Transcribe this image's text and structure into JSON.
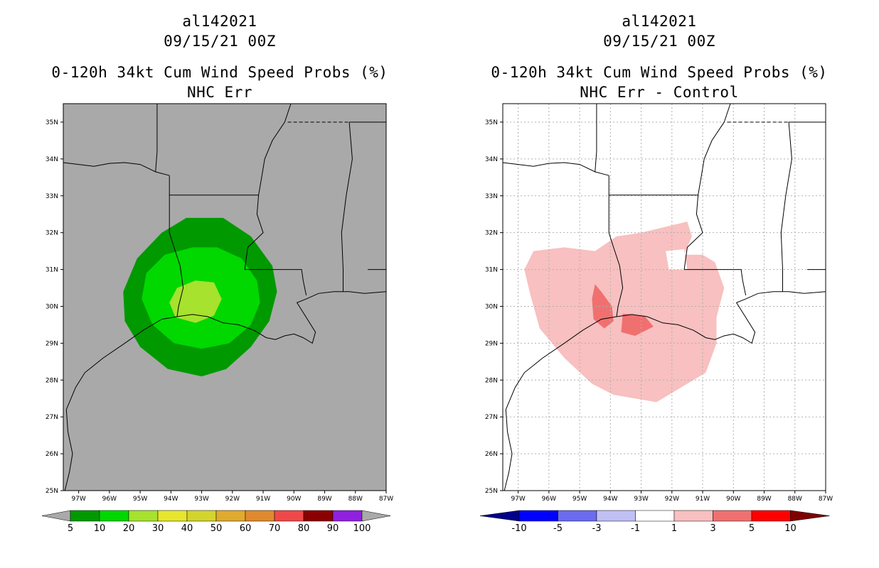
{
  "panels": [
    {
      "id": "left",
      "storm_id": "al142021",
      "datetime": "09/15/21 00Z",
      "product": "0-120h 34kt Cum Wind Speed Probs (%)",
      "subtitle": "NHC Err",
      "background": "#a9a9a9",
      "gridlines": false,
      "colorbar": {
        "labels": [
          "5",
          "10",
          "20",
          "30",
          "40",
          "50",
          "60",
          "70",
          "80",
          "90",
          "100"
        ],
        "colors": [
          "#009900",
          "#00d800",
          "#a6e22e",
          "#e6e62e",
          "#d4d42e",
          "#e0aa2e",
          "#e08a2e",
          "#f04848",
          "#8b0000",
          "#9020e0"
        ],
        "end_colors": [
          "#a9a9a9",
          "#a9a9a9"
        ]
      },
      "probability_regions": [
        {
          "label": "5-10%",
          "color": "#009900"
        },
        {
          "label": "10-20%",
          "color": "#00d800"
        },
        {
          "label": "20-30%",
          "color": "#a6e22e"
        }
      ]
    },
    {
      "id": "right",
      "storm_id": "al142021",
      "datetime": "09/15/21 00Z",
      "product": "0-120h 34kt Cum Wind Speed Probs (%)",
      "subtitle": "NHC Err - Control",
      "background": "#ffffff",
      "gridlines": true,
      "colorbar": {
        "labels": [
          "-10",
          "-5",
          "-3",
          "-1",
          "1",
          "3",
          "5",
          "10"
        ],
        "colors": [
          "#0000ff",
          "#6b6bf0",
          "#c0c0f5",
          "#ffffff",
          "#f8c0c0",
          "#f07070",
          "#ff0000"
        ],
        "end_colors": [
          "#00008b",
          "#800000"
        ]
      },
      "probability_regions": [
        {
          "label": "1-3%",
          "color": "#f8c0c0"
        },
        {
          "label": "3-5%",
          "color": "#f07070"
        }
      ]
    }
  ],
  "map": {
    "longitudes": [
      "97W",
      "96W",
      "95W",
      "94W",
      "93W",
      "92W",
      "91W",
      "90W",
      "89W",
      "88W",
      "87W"
    ],
    "latitudes": [
      "35N",
      "34N",
      "33N",
      "32N",
      "31N",
      "30N",
      "29N",
      "28N",
      "27N",
      "26N",
      "25N"
    ],
    "lon_values": [
      -97,
      -96,
      -95,
      -94,
      -93,
      -92,
      -91,
      -90,
      -89,
      -88,
      -87
    ],
    "lat_values": [
      35,
      34,
      33,
      32,
      31,
      30,
      29,
      28,
      27,
      26,
      25
    ]
  }
}
